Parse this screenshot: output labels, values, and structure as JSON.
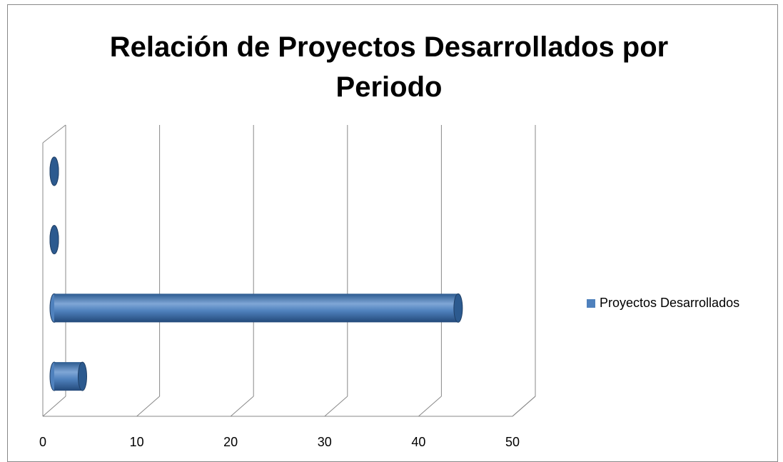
{
  "chart_data": {
    "type": "bar",
    "orientation": "horizontal",
    "title": "Relación de Proyectos Desarrollados por Periodo",
    "categories": [
      null,
      null,
      null,
      null
    ],
    "series": [
      {
        "name": "Proyectos Desarrollados",
        "color": "#4f81bd",
        "values": [
          3,
          43,
          0,
          0
        ]
      }
    ],
    "xlim": [
      0,
      50
    ],
    "xticks": [
      0,
      10,
      20,
      30,
      40,
      50
    ],
    "grid": true,
    "legend": "right"
  }
}
